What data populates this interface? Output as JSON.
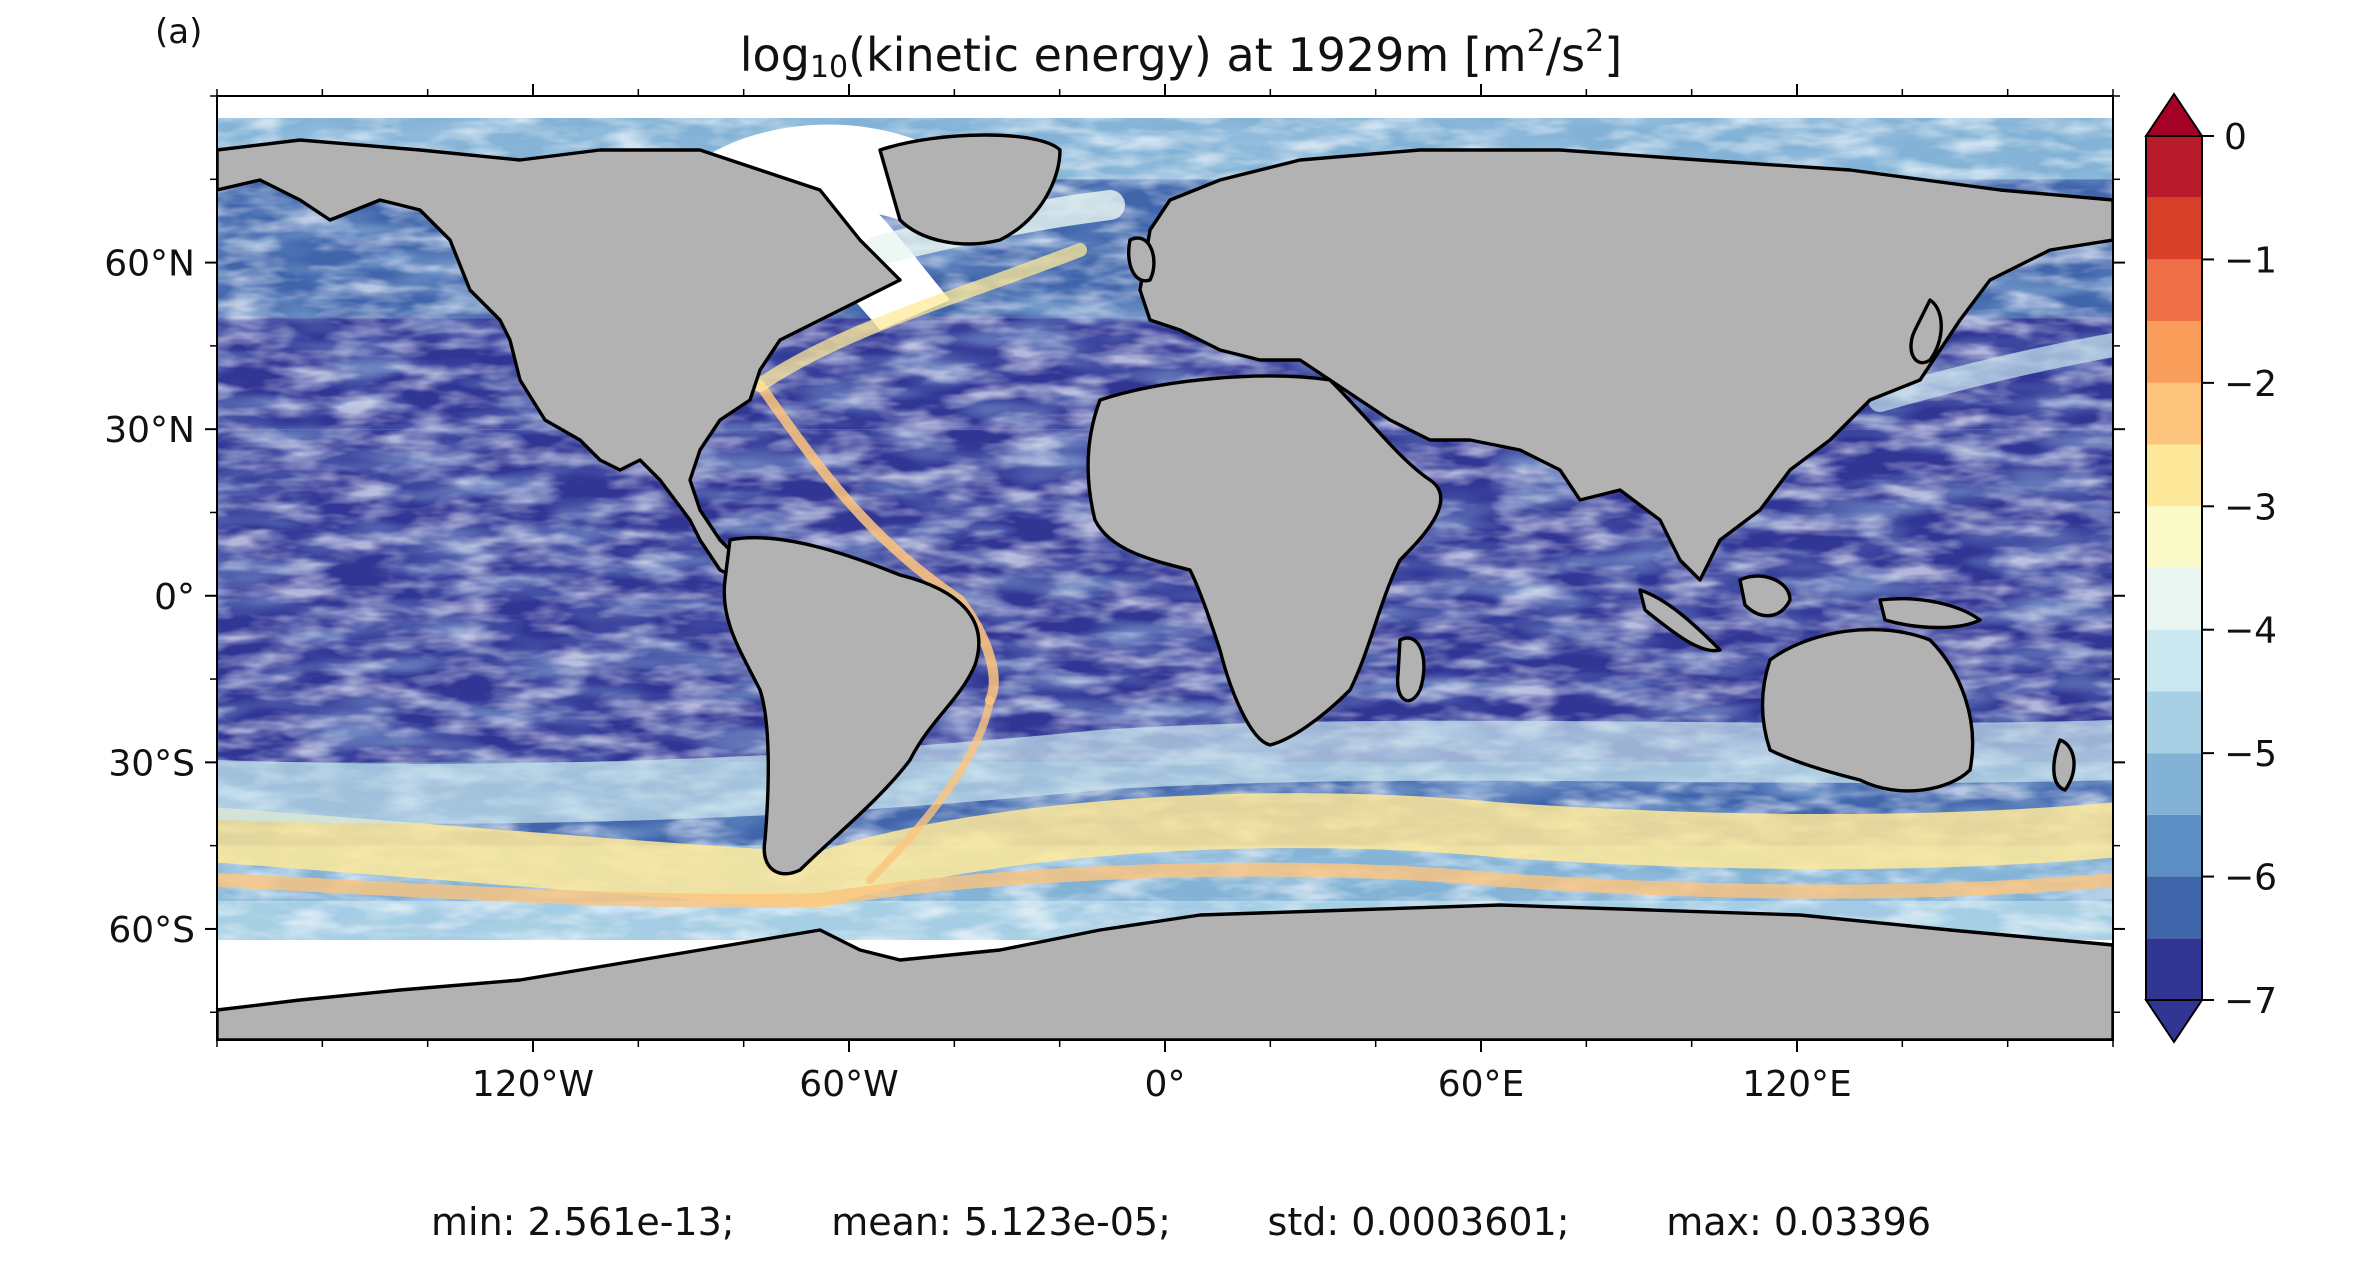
{
  "figure": {
    "panel_label": "(a)",
    "title": {
      "prefix": "log",
      "sub": "10",
      "middle": "(kinetic energy) at 1929m [m",
      "sup1": "2",
      "slash": "/s",
      "sup2": "2",
      "suffix": "]"
    },
    "stats": {
      "min": "min: 2.561e-13;",
      "mean": "mean: 5.123e-05;",
      "std": "std: 0.0003601;",
      "max": "max: 0.03396"
    }
  },
  "map": {
    "projection": "plate-carree",
    "lon_range": [
      -180,
      180
    ],
    "lat_range": [
      -80,
      90
    ],
    "land_color": "#b2b2b2",
    "coastline_color": "#000000",
    "no_data_color": "#ffffff",
    "lat_ticks": [
      {
        "value": 60,
        "label": "60°N"
      },
      {
        "value": 30,
        "label": "30°N"
      },
      {
        "value": 0,
        "label": "0°"
      },
      {
        "value": -30,
        "label": "30°S"
      },
      {
        "value": -60,
        "label": "60°S"
      }
    ],
    "lon_ticks": [
      {
        "value": -120,
        "label": "120°W"
      },
      {
        "value": -60,
        "label": "60°W"
      },
      {
        "value": 0,
        "label": "0°"
      },
      {
        "value": 60,
        "label": "60°E"
      },
      {
        "value": 120,
        "label": "120°E"
      }
    ]
  },
  "colorbar": {
    "min": -7,
    "max": 0,
    "extend": "both",
    "levels": [
      -7,
      -6.5,
      -6,
      -5.5,
      -5,
      -4.5,
      -4,
      -3.5,
      -3,
      -2.5,
      -2,
      -1.5,
      -1,
      -0.5,
      0
    ],
    "colors": [
      "#313695",
      "#4065ab",
      "#5b8ec2",
      "#82b2d5",
      "#a7d0e4",
      "#cbe7f0",
      "#e9f6f2",
      "#fafbc8",
      "#fee99a",
      "#fdc47d",
      "#f99d5a",
      "#ee6f45",
      "#d9402a",
      "#b81c2c"
    ],
    "under_color": "#313695",
    "over_color": "#a50026",
    "tick_values": [
      0,
      -1,
      -2,
      -3,
      -4,
      -5,
      -6,
      -7
    ],
    "tick_labels": [
      "0",
      "−1",
      "−2",
      "−3",
      "−4",
      "−5",
      "−6",
      "−7"
    ]
  }
}
